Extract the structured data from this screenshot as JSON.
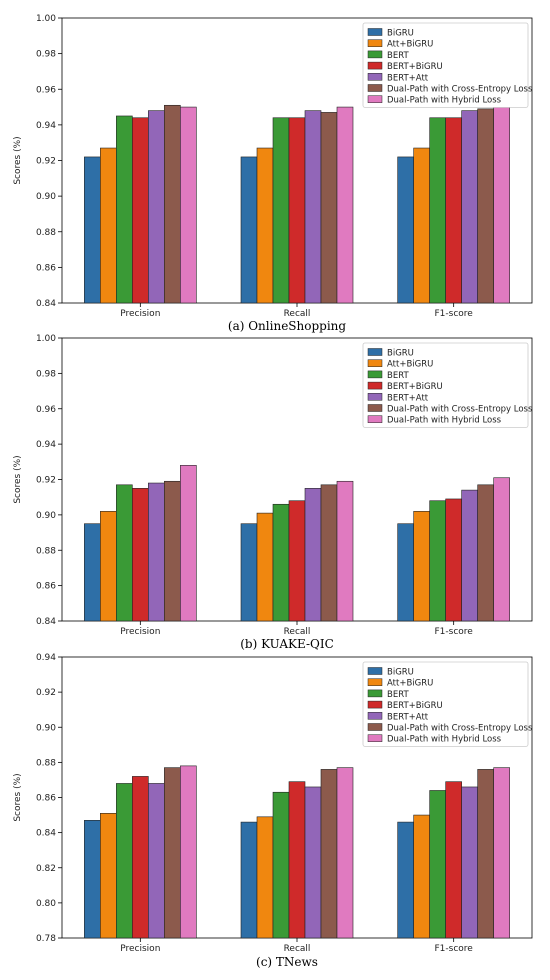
{
  "figure": {
    "series_colors": [
      "#2e6fa7",
      "#f0870f",
      "#3a9a36",
      "#cf2a2a",
      "#9266b8",
      "#8c5a4c",
      "#e07ac0"
    ]
  },
  "chart_data": [
    {
      "type": "bar",
      "caption": "(a) OnlineShopping",
      "ylabel": "Scores (%)",
      "ylim": [
        0.84,
        1.0
      ],
      "yticks": [
        0.84,
        0.86,
        0.88,
        0.9,
        0.92,
        0.94,
        0.96,
        0.98,
        1.0
      ],
      "categories": [
        "Precision",
        "Recall",
        "F1-score"
      ],
      "legend_position": "top-right",
      "series": [
        {
          "name": "BiGRU",
          "values": [
            0.922,
            0.922,
            0.922
          ]
        },
        {
          "name": "Att+BiGRU",
          "values": [
            0.927,
            0.927,
            0.927
          ]
        },
        {
          "name": "BERT",
          "values": [
            0.945,
            0.944,
            0.944
          ]
        },
        {
          "name": "BERT+BiGRU",
          "values": [
            0.944,
            0.944,
            0.944
          ]
        },
        {
          "name": "BERT+Att",
          "values": [
            0.948,
            0.948,
            0.948
          ]
        },
        {
          "name": "Dual-Path with Cross-Entropy Loss",
          "values": [
            0.951,
            0.947,
            0.949
          ]
        },
        {
          "name": "Dual-Path with Hybrid Loss",
          "values": [
            0.95,
            0.95,
            0.95
          ]
        }
      ]
    },
    {
      "type": "bar",
      "caption": "(b) KUAKE-QIC",
      "ylabel": "Scores (%)",
      "ylim": [
        0.84,
        1.0
      ],
      "yticks": [
        0.84,
        0.86,
        0.88,
        0.9,
        0.92,
        0.94,
        0.96,
        0.98,
        1.0
      ],
      "categories": [
        "Precision",
        "Recall",
        "F1-score"
      ],
      "legend_position": "top-right",
      "series": [
        {
          "name": "BiGRU",
          "values": [
            0.895,
            0.895,
            0.895
          ]
        },
        {
          "name": "Att+BiGRU",
          "values": [
            0.902,
            0.901,
            0.902
          ]
        },
        {
          "name": "BERT",
          "values": [
            0.917,
            0.906,
            0.908
          ]
        },
        {
          "name": "BERT+BiGRU",
          "values": [
            0.915,
            0.908,
            0.909
          ]
        },
        {
          "name": "BERT+Att",
          "values": [
            0.918,
            0.915,
            0.914
          ]
        },
        {
          "name": "Dual-Path with Cross-Entropy Loss",
          "values": [
            0.919,
            0.917,
            0.917
          ]
        },
        {
          "name": "Dual-Path with Hybrid Loss",
          "values": [
            0.928,
            0.919,
            0.921
          ]
        }
      ]
    },
    {
      "type": "bar",
      "caption": "(c) TNews",
      "ylabel": "Scores (%)",
      "ylim": [
        0.78,
        0.94
      ],
      "yticks": [
        0.78,
        0.8,
        0.82,
        0.84,
        0.86,
        0.88,
        0.9,
        0.92,
        0.94
      ],
      "categories": [
        "Precision",
        "Recall",
        "F1-score"
      ],
      "legend_position": "top-right",
      "series": [
        {
          "name": "BiGRU",
          "values": [
            0.847,
            0.846,
            0.846
          ]
        },
        {
          "name": "Att+BiGRU",
          "values": [
            0.851,
            0.849,
            0.85
          ]
        },
        {
          "name": "BERT",
          "values": [
            0.868,
            0.863,
            0.864
          ]
        },
        {
          "name": "BERT+BiGRU",
          "values": [
            0.872,
            0.869,
            0.869
          ]
        },
        {
          "name": "BERT+Att",
          "values": [
            0.868,
            0.866,
            0.866
          ]
        },
        {
          "name": "Dual-Path with Cross-Entropy Loss",
          "values": [
            0.877,
            0.876,
            0.876
          ]
        },
        {
          "name": "Dual-Path with Hybrid Loss",
          "values": [
            0.878,
            0.877,
            0.877
          ]
        }
      ]
    }
  ]
}
